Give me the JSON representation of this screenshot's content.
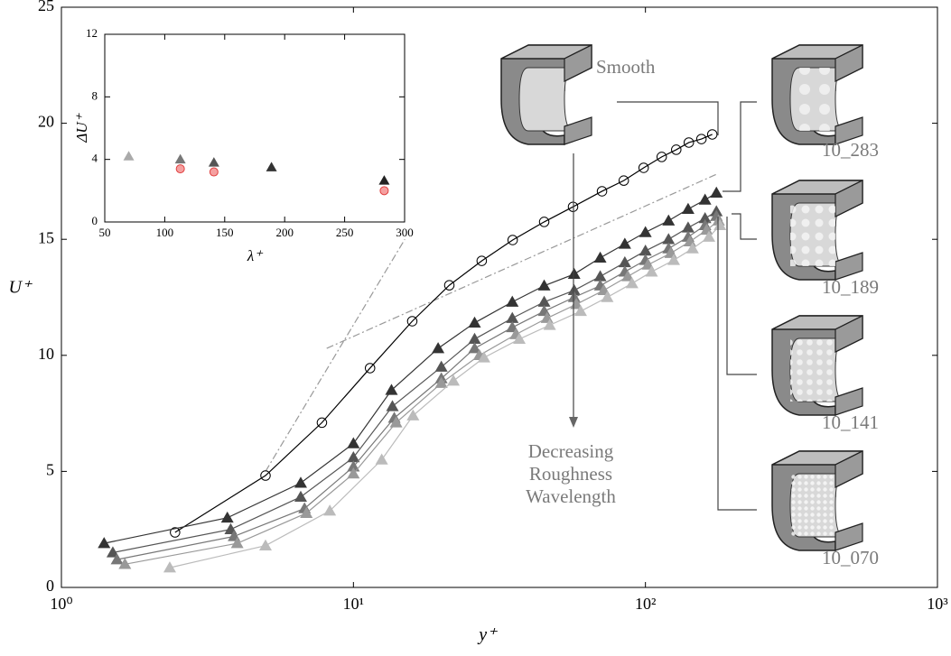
{
  "chart_data": [
    {
      "type": "line",
      "x_label": "y⁺",
      "y_label": "U⁺",
      "xscale": "log",
      "xlim": [
        1,
        1000
      ],
      "xticks": [
        {
          "value": 1,
          "label": "10⁰"
        },
        {
          "value": 10,
          "label": "10¹"
        },
        {
          "value": 100,
          "label": "10²"
        },
        {
          "value": 1000,
          "label": "10³"
        }
      ],
      "ylim": [
        0,
        25
      ],
      "yticks": [
        0,
        5,
        10,
        15,
        20,
        25
      ],
      "series": [
        {
          "name": "Smooth",
          "color": "#000000",
          "marker": "circle",
          "x": [
            2.45,
            5.0,
            7.8,
            11.4,
            15.9,
            21.3,
            27.5,
            35.1,
            45.0,
            56.5,
            71.0,
            84.3,
            98.6,
            113.7,
            127.5,
            140.8,
            155.5,
            169.4
          ],
          "values": [
            2.37,
            4.82,
            7.1,
            9.45,
            11.47,
            13.02,
            14.07,
            14.97,
            15.75,
            16.4,
            17.07,
            17.53,
            18.08,
            18.55,
            18.86,
            19.17,
            19.32,
            19.52
          ]
        },
        {
          "name": "10_283",
          "color": "#333333",
          "marker": "triangle",
          "x": [
            1.4,
            3.7,
            6.6,
            10,
            13.5,
            19.5,
            26,
            35,
            45,
            57,
            70,
            85,
            100,
            120,
            140,
            160,
            175
          ],
          "values": [
            1.9,
            3.0,
            4.5,
            6.2,
            8.5,
            10.3,
            11.4,
            12.3,
            13.0,
            13.5,
            14.2,
            14.8,
            15.3,
            15.8,
            16.3,
            16.7,
            17.0
          ]
        },
        {
          "name": "10_189",
          "color": "#555555",
          "marker": "triangle",
          "x": [
            1.5,
            3.8,
            6.6,
            10,
            13.6,
            20,
            26,
            35,
            45,
            57,
            70,
            85,
            100,
            120,
            140,
            160,
            175
          ],
          "values": [
            1.5,
            2.5,
            3.9,
            5.6,
            7.8,
            9.5,
            10.7,
            11.6,
            12.3,
            12.8,
            13.4,
            14.0,
            14.5,
            15.0,
            15.5,
            15.9,
            16.2
          ]
        },
        {
          "name": "10_141",
          "color": "#777777",
          "marker": "triangle",
          "x": [
            1.55,
            3.9,
            6.8,
            10,
            13.8,
            20,
            26,
            35,
            45,
            57,
            70,
            85,
            100,
            120,
            140,
            160,
            175
          ],
          "values": [
            1.2,
            2.2,
            3.4,
            5.2,
            7.3,
            9.0,
            10.3,
            11.2,
            11.9,
            12.5,
            13.0,
            13.6,
            14.1,
            14.6,
            15.1,
            15.6,
            16.0
          ]
        },
        {
          "color": "#999999",
          "marker": "triangle",
          "x": [
            1.65,
            4.0,
            6.9,
            10,
            14,
            20,
            27,
            36,
            46,
            58,
            72,
            87,
            102,
            122,
            142,
            162,
            178
          ],
          "values": [
            1.0,
            1.9,
            3.2,
            4.9,
            7.1,
            8.8,
            10.0,
            10.9,
            11.6,
            12.2,
            12.8,
            13.4,
            13.9,
            14.4,
            14.9,
            15.4,
            15.8
          ]
        },
        {
          "name": "10_070",
          "color": "#bbbbbb",
          "marker": "triangle",
          "x": [
            2.35,
            5,
            8.3,
            12.5,
            16,
            22,
            28,
            37,
            47,
            60,
            74,
            90,
            105,
            125,
            145,
            165,
            180
          ],
          "values": [
            0.85,
            1.8,
            3.3,
            5.5,
            7.4,
            8.9,
            9.9,
            10.7,
            11.3,
            11.9,
            12.5,
            13.1,
            13.6,
            14.1,
            14.6,
            15.1,
            15.6
          ]
        }
      ],
      "reference_lines": [
        {
          "color": "#999999",
          "x": [
            5,
            15
          ],
          "values": [
            5,
            15
          ]
        },
        {
          "color": "#999999",
          "x": [
            8.1,
            175
          ],
          "values": [
            10.3,
            17.8
          ]
        }
      ],
      "annotation": [
        "Decreasing",
        "Roughness",
        "Wavelength"
      ]
    },
    {
      "type": "scatter",
      "x_label": "λ⁺",
      "y_label": "ΔU⁺",
      "xlim": [
        50,
        300
      ],
      "xticks": [
        50,
        100,
        150,
        200,
        250,
        300
      ],
      "ylim": [
        0,
        12
      ],
      "yticks": [
        0,
        4,
        8,
        12
      ],
      "series": [
        {
          "marker": "triangle",
          "x": [
            70,
            113,
            141,
            189,
            283
          ],
          "values": [
            4.2,
            4.0,
            3.8,
            3.5,
            2.65
          ],
          "colors": [
            "#aaaaaa",
            "#777777",
            "#555555",
            "#333333",
            "#222222"
          ]
        },
        {
          "marker": "circle",
          "color": "#e04040",
          "x": [
            113,
            141,
            283
          ],
          "values": [
            3.4,
            3.2,
            2.0
          ]
        }
      ]
    }
  ]
}
